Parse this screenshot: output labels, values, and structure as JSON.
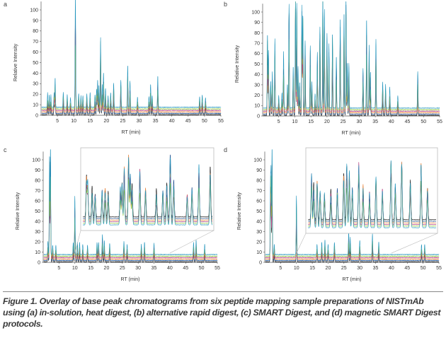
{
  "caption": "Figure 1. Overlay of base peak chromatograms from six peptide mapping sample preparations of NISTmAb using (a) in-solution, heat digest, (b) alternative rapid digest, (c) SMART Digest, and (d) magnetic SMART Digest protocols.",
  "trace_colors": [
    "#1b1b1b",
    "#1f4f8f",
    "#e8843c",
    "#b23b7c",
    "#8dc63f",
    "#2596be"
  ],
  "chart_data": [
    {
      "panel": "a",
      "type": "line",
      "xlabel": "RT (min)",
      "ylabel": "Relative Intensity",
      "xlim": [
        0,
        55
      ],
      "ylim": [
        0,
        100
      ],
      "xticks": [
        5,
        10,
        15,
        20,
        25,
        30,
        35,
        40,
        45,
        50,
        55
      ],
      "yticks": [
        0,
        10,
        20,
        30,
        40,
        50,
        60,
        70,
        80,
        90,
        100
      ],
      "series_count": 6,
      "inset": false,
      "peaks": [
        [
          2,
          14
        ],
        [
          2.5,
          12
        ],
        [
          3,
          12
        ],
        [
          4,
          14
        ],
        [
          4.3,
          28
        ],
        [
          6.8,
          14
        ],
        [
          8,
          12
        ],
        [
          9,
          9
        ],
        [
          10.5,
          107
        ],
        [
          11.5,
          13
        ],
        [
          12.2,
          11
        ],
        [
          12.8,
          11
        ],
        [
          14,
          13
        ],
        [
          15,
          14
        ],
        [
          16.5,
          12
        ],
        [
          17,
          17
        ],
        [
          17.3,
          26
        ],
        [
          17.7,
          21
        ],
        [
          18.2,
          66
        ],
        [
          18.7,
          22
        ],
        [
          19.1,
          33
        ],
        [
          19.7,
          18
        ],
        [
          20.5,
          11
        ],
        [
          21.3,
          14
        ],
        [
          22.2,
          23
        ],
        [
          24.4,
          26
        ],
        [
          26.5,
          40
        ],
        [
          27.2,
          25
        ],
        [
          29.5,
          10
        ],
        [
          33,
          10
        ],
        [
          33.5,
          22
        ],
        [
          34,
          11
        ],
        [
          35.7,
          30
        ],
        [
          48.5,
          10
        ],
        [
          49.3,
          12
        ],
        [
          50.3,
          9
        ]
      ]
    },
    {
      "panel": "b",
      "type": "line",
      "xlabel": "RT (min)",
      "ylabel": "Relative Intensity",
      "xlim": [
        0,
        55
      ],
      "ylim": [
        0,
        100
      ],
      "xticks": [
        5,
        10,
        15,
        20,
        25,
        30,
        35,
        40,
        45,
        50,
        55
      ],
      "yticks": [
        0,
        10,
        20,
        30,
        40,
        50,
        60,
        70,
        80,
        90,
        100
      ],
      "series_count": 6,
      "inset": false,
      "peaks": [
        [
          1.5,
          71
        ],
        [
          1.8,
          55
        ],
        [
          2.5,
          26
        ],
        [
          3,
          35
        ],
        [
          3.8,
          67
        ],
        [
          5,
          12
        ],
        [
          6,
          15
        ],
        [
          6.5,
          56
        ],
        [
          7.7,
          23
        ],
        [
          8.2,
          100
        ],
        [
          9.5,
          40
        ],
        [
          10.2,
          105
        ],
        [
          10.6,
          101
        ],
        [
          11,
          40
        ],
        [
          11.5,
          25
        ],
        [
          12.2,
          99
        ],
        [
          12.5,
          90
        ],
        [
          13.2,
          65
        ],
        [
          14.8,
          60
        ],
        [
          15.3,
          26
        ],
        [
          16.3,
          14
        ],
        [
          17,
          54
        ],
        [
          17.8,
          78
        ],
        [
          18.7,
          108
        ],
        [
          19.2,
          95
        ],
        [
          20,
          72
        ],
        [
          20.6,
          62
        ],
        [
          21.7,
          72
        ],
        [
          22.9,
          50
        ],
        [
          24.1,
          87
        ],
        [
          25.3,
          92
        ],
        [
          25.9,
          108
        ],
        [
          26.3,
          44
        ],
        [
          26.8,
          43
        ],
        [
          31.2,
          38
        ],
        [
          32.3,
          86
        ],
        [
          33.1,
          62
        ],
        [
          33.5,
          35
        ],
        [
          35.2,
          66
        ],
        [
          37.3,
          26
        ],
        [
          38.2,
          23
        ],
        [
          39.5,
          21
        ],
        [
          42,
          12
        ],
        [
          48.2,
          35
        ]
      ]
    },
    {
      "panel": "c",
      "type": "line",
      "xlabel": "RT (min)",
      "ylabel": "Relative Intensity",
      "xlim": [
        0,
        55
      ],
      "ylim": [
        0,
        100
      ],
      "xticks": [
        5,
        10,
        15,
        20,
        25,
        30,
        35,
        40,
        45,
        50,
        55
      ],
      "yticks": [
        0,
        10,
        20,
        30,
        40,
        50,
        60,
        70,
        80,
        90,
        100
      ],
      "series_count": 6,
      "inset": true,
      "inset_range": [
        10,
        40
      ],
      "peaks": [
        [
          1.5,
          13
        ],
        [
          2,
          95
        ],
        [
          2.3,
          108
        ],
        [
          3,
          9
        ],
        [
          4,
          9
        ],
        [
          9.5,
          12
        ],
        [
          10,
          57
        ],
        [
          10.8,
          12
        ],
        [
          11.5,
          12
        ],
        [
          12.5,
          10
        ],
        [
          14,
          9
        ],
        [
          17,
          12
        ],
        [
          17.5,
          12
        ],
        [
          18.7,
          20
        ],
        [
          19.3,
          14
        ],
        [
          21,
          11
        ],
        [
          25.5,
          13
        ],
        [
          26.5,
          10
        ],
        [
          31,
          10
        ],
        [
          32,
          12
        ],
        [
          35,
          11
        ],
        [
          47.5,
          12
        ],
        [
          48.3,
          14
        ],
        [
          51,
          10
        ]
      ],
      "inset_peaks": [
        [
          11,
          67
        ],
        [
          11.3,
          68
        ],
        [
          12.3,
          50
        ],
        [
          13,
          45
        ],
        [
          14.6,
          53
        ],
        [
          15.3,
          51
        ],
        [
          16,
          48
        ],
        [
          18.8,
          60
        ],
        [
          19.2,
          65
        ],
        [
          19.7,
          90
        ],
        [
          20.7,
          107
        ],
        [
          21.1,
          80
        ],
        [
          21.5,
          55
        ],
        [
          23.3,
          85
        ],
        [
          24.6,
          54
        ],
        [
          27.1,
          48
        ],
        [
          28.6,
          52
        ],
        [
          29.5,
          62
        ],
        [
          30.3,
          107
        ],
        [
          31.1,
          62
        ],
        [
          34.2,
          44
        ],
        [
          35.3,
          56
        ],
        [
          36.9,
          96
        ],
        [
          39.5,
          80
        ]
      ]
    },
    {
      "panel": "d",
      "type": "line",
      "xlabel": "RT (min)",
      "ylabel": "Relative Intensity",
      "xlim": [
        0,
        55
      ],
      "ylim": [
        0,
        100
      ],
      "xticks": [
        5,
        10,
        15,
        20,
        25,
        30,
        35,
        40,
        45,
        50,
        55
      ],
      "yticks": [
        0,
        10,
        20,
        30,
        40,
        50,
        60,
        70,
        80,
        90,
        100
      ],
      "series_count": 6,
      "inset": true,
      "inset_range": [
        10,
        40
      ],
      "peaks": [
        [
          1.8,
          70
        ],
        [
          2,
          80
        ],
        [
          2.3,
          108
        ],
        [
          3,
          10
        ],
        [
          10,
          57
        ],
        [
          16.5,
          10
        ],
        [
          18,
          12
        ],
        [
          19,
          14
        ],
        [
          20,
          10
        ],
        [
          22,
          12
        ],
        [
          26.5,
          23
        ],
        [
          27,
          17
        ],
        [
          30,
          14
        ],
        [
          34,
          20
        ],
        [
          36,
          12
        ],
        [
          49.5,
          10
        ],
        [
          50.5,
          10
        ]
      ],
      "inset_peaks": [
        [
          11,
          85
        ],
        [
          11.5,
          60
        ],
        [
          12.3,
          70
        ],
        [
          13,
          58
        ],
        [
          14,
          55
        ],
        [
          15.5,
          50
        ],
        [
          17,
          52
        ],
        [
          18.5,
          75
        ],
        [
          19.2,
          100
        ],
        [
          19.8,
          90
        ],
        [
          20.5,
          60
        ],
        [
          22,
          98
        ],
        [
          23,
          62
        ],
        [
          24.5,
          55
        ],
        [
          26,
          80
        ],
        [
          27.5,
          58
        ],
        [
          29.5,
          107
        ],
        [
          30.5,
          70
        ],
        [
          32,
          100
        ],
        [
          34,
          70
        ],
        [
          36.5,
          100
        ],
        [
          38,
          58
        ]
      ]
    }
  ]
}
